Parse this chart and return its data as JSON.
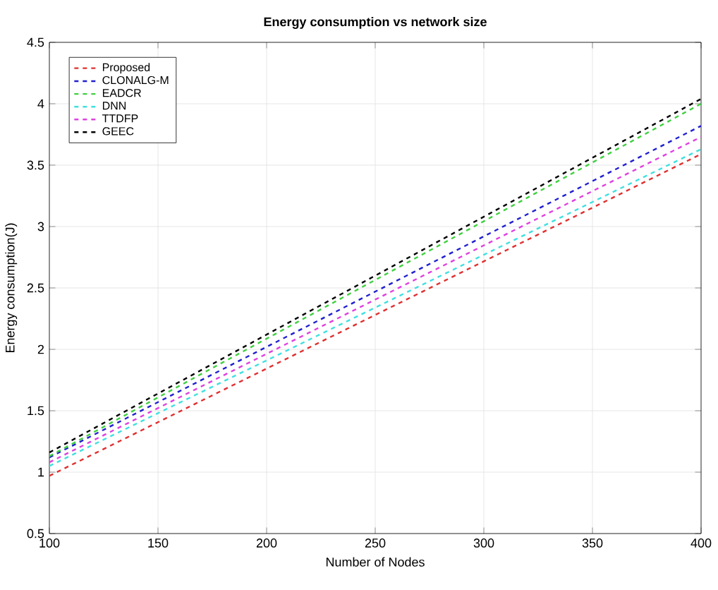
{
  "chart_data": {
    "type": "line",
    "title": "Energy consumption vs network size",
    "xlabel": "Number of Nodes",
    "ylabel": "Energy consumption(J)",
    "x": [
      100,
      400
    ],
    "xlim": [
      100,
      400
    ],
    "ylim": [
      0.5,
      4.5
    ],
    "xticks": [
      100,
      150,
      200,
      250,
      300,
      350,
      400
    ],
    "yticks": [
      0.5,
      1,
      1.5,
      2,
      2.5,
      3,
      3.5,
      4,
      4.5
    ],
    "grid": true,
    "legend": "top left",
    "line_style": "dashed",
    "marker": "none",
    "series": [
      {
        "name": "Proposed",
        "color": "#e03030",
        "values": [
          0.97,
          3.59
        ]
      },
      {
        "name": "CLONALG-M",
        "color": "#2020d0",
        "values": [
          1.12,
          3.82
        ]
      },
      {
        "name": "EADCR",
        "color": "#40d040",
        "values": [
          1.13,
          4.0
        ]
      },
      {
        "name": "DNN",
        "color": "#40e0e0",
        "values": [
          1.05,
          3.63
        ]
      },
      {
        "name": "TTDFP",
        "color": "#e040e0",
        "values": [
          1.08,
          3.73
        ]
      },
      {
        "name": "GEEC",
        "color": "#000000",
        "values": [
          1.16,
          4.04
        ]
      }
    ]
  }
}
